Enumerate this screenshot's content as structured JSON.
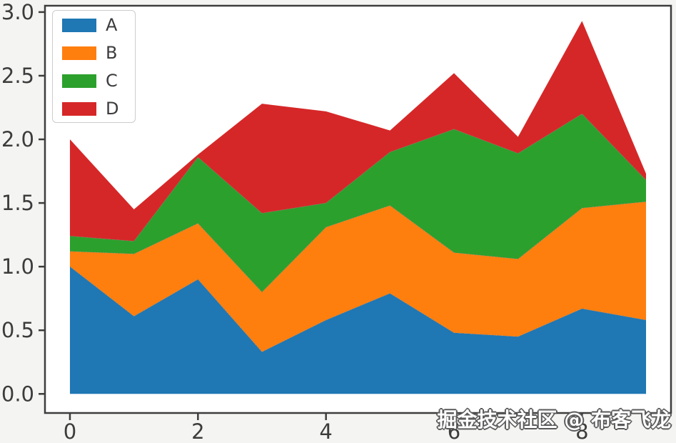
{
  "figure": {
    "background": "#f4f4f2",
    "plot_background": "#ffffff",
    "spine_color": "#3d3d3d",
    "tick_text_color": "#3c3c3c"
  },
  "watermark": {
    "text": "掘金技术社区 @ 布客飞龙"
  },
  "legend": {
    "position": "upper left",
    "entries": [
      "A",
      "B",
      "C",
      "D"
    ]
  },
  "chart_data": {
    "type": "area",
    "stacked": true,
    "title": "",
    "xlabel": "",
    "ylabel": "",
    "grid": false,
    "legend_position": "upper left",
    "x": [
      0,
      1,
      2,
      3,
      4,
      5,
      6,
      7,
      8,
      9
    ],
    "series": [
      {
        "name": "A",
        "color": "#1f77b4",
        "values": [
          1.0,
          0.61,
          0.9,
          0.33,
          0.58,
          0.79,
          0.48,
          0.45,
          0.67,
          0.58
        ]
      },
      {
        "name": "B",
        "color": "#ff7f0e",
        "values": [
          0.12,
          0.49,
          0.44,
          0.47,
          0.73,
          0.69,
          0.63,
          0.61,
          0.79,
          0.93
        ]
      },
      {
        "name": "C",
        "color": "#2ca02c",
        "values": [
          0.12,
          0.1,
          0.52,
          0.62,
          0.19,
          0.42,
          0.97,
          0.83,
          0.74,
          0.17
        ]
      },
      {
        "name": "D",
        "color": "#d62728",
        "values": [
          0.76,
          0.25,
          0.02,
          0.86,
          0.72,
          0.17,
          0.44,
          0.13,
          0.73,
          0.05
        ]
      }
    ],
    "stacked_totals": [
      2.0,
      1.45,
      1.88,
      2.28,
      2.22,
      2.07,
      2.52,
      2.02,
      2.93,
      1.73
    ],
    "xticks": {
      "values": [
        0,
        2,
        4,
        6,
        8
      ],
      "labels": [
        "0",
        "2",
        "4",
        "6",
        "8"
      ]
    },
    "yticks": {
      "values": [
        0,
        0.5,
        1,
        1.5,
        2,
        2.5,
        3
      ],
      "labels": [
        "0.0",
        "0.5",
        "1.0",
        "1.5",
        "2.0",
        "2.5",
        "3.0"
      ]
    },
    "xlim": [
      -0.39,
      9.39
    ],
    "ylim": [
      -0.15,
      3.05
    ]
  }
}
